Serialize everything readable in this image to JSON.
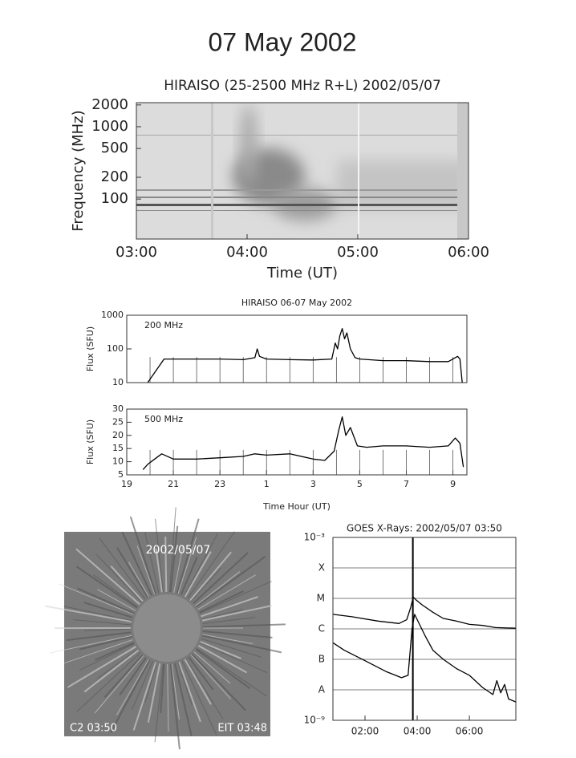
{
  "title": "07 May 2002",
  "chart_data": [
    {
      "type": "spectrogram",
      "title": "HIRAISO (25-2500 MHz R+L) 2002/05/07",
      "xlabel": "Time (UT)",
      "ylabel": "Frequency (MHz)",
      "ylog": true,
      "xlim": [
        3,
        6
      ],
      "xticks": [
        {
          "value": 3,
          "label": "03:00"
        },
        {
          "value": 4,
          "label": "04:00"
        },
        {
          "value": 5,
          "label": "05:00"
        },
        {
          "value": 6,
          "label": "06:00"
        }
      ],
      "ylim": [
        28,
        2150
      ],
      "yticks": [
        100,
        200,
        500,
        1000,
        2000
      ]
    },
    {
      "type": "line",
      "title": "HIRAISO 06-07 May 2002",
      "ylabel": "Flux (SFU)",
      "annotation": "200 MHz",
      "ylog": true,
      "xlim": [
        19,
        33.6
      ],
      "xminorticks": [
        20,
        21,
        22,
        23,
        24,
        25,
        26,
        27,
        28,
        29,
        30,
        31,
        32,
        33
      ],
      "ylim": [
        10,
        1000
      ],
      "yticks": [
        10,
        100,
        1000
      ],
      "series": [
        {
          "color": "#000000",
          "x": [
            19.9,
            20.6,
            21,
            22,
            23,
            24,
            24.5,
            24.6,
            24.7,
            25,
            26,
            27,
            27.8,
            27.95,
            28.05,
            28.15,
            28.25,
            28.35,
            28.45,
            28.6,
            28.8,
            29,
            30,
            31,
            32,
            32.8,
            33.2,
            33.3,
            33.4
          ],
          "values": [
            10,
            50,
            50,
            50,
            50,
            48,
            55,
            100,
            60,
            50,
            48,
            47,
            50,
            150,
            100,
            250,
            400,
            200,
            300,
            100,
            55,
            50,
            45,
            45,
            42,
            42,
            60,
            50,
            10
          ]
        }
      ]
    },
    {
      "type": "line",
      "ylabel": "Flux (SFU)",
      "annotation": "500 MHz",
      "xlabel": "Time Hour (UT)",
      "xlim": [
        19,
        33.6
      ],
      "xticks": [
        19,
        21,
        23,
        {
          "value": 25,
          "label": "1"
        },
        {
          "value": 27,
          "label": "3"
        },
        {
          "value": 29,
          "label": "5"
        },
        {
          "value": 31,
          "label": "7"
        },
        {
          "value": 33,
          "label": "9"
        }
      ],
      "xminorticks": [
        20,
        21,
        22,
        23,
        24,
        25,
        26,
        27,
        28,
        29,
        30,
        31,
        32,
        33
      ],
      "ylim": [
        5,
        30
      ],
      "yticks": [
        5,
        10,
        15,
        20,
        25,
        30
      ],
      "series": [
        {
          "color": "#000000",
          "x": [
            19.7,
            19.9,
            20.2,
            20.5,
            21,
            22,
            23,
            24,
            24.5,
            25,
            26,
            27,
            27.5,
            27.9,
            28.1,
            28.25,
            28.4,
            28.6,
            28.9,
            29.3,
            30,
            31,
            32,
            32.8,
            33.1,
            33.3,
            33.45
          ],
          "values": [
            7,
            9,
            11,
            13,
            11,
            11,
            11.5,
            12,
            13,
            12.5,
            13,
            11,
            10.5,
            14,
            22,
            27,
            20,
            23,
            16,
            15.5,
            16,
            16,
            15.5,
            16,
            19,
            17,
            8
          ]
        }
      ]
    },
    {
      "type": "line",
      "title": "GOES X-Rays: 2002/05/07 03:50",
      "ylog": true,
      "grid": true,
      "xlim": [
        0.77,
        7.78
      ],
      "xticks": [
        {
          "value": 2,
          "label": "02:00"
        },
        {
          "value": 4,
          "label": "04:00"
        },
        {
          "value": 6,
          "label": "06:00"
        }
      ],
      "ylim": [
        1e-09,
        0.001
      ],
      "yticks": [
        {
          "value": 0.001,
          "label": "10⁻³"
        },
        {
          "value": 0.0001,
          "label": "X"
        },
        {
          "value": 1e-05,
          "label": "M"
        },
        {
          "value": 1e-06,
          "label": "C"
        },
        {
          "value": 1e-07,
          "label": "B"
        },
        {
          "value": 1e-08,
          "label": "A"
        },
        {
          "value": 1e-09,
          "label": "10⁻⁹"
        }
      ],
      "vline": 3.8333,
      "series": [
        {
          "color": "#000000",
          "x": [
            0.77,
            1.5,
            2.5,
            3.3,
            3.6,
            3.75,
            3.85,
            3.95,
            4.2,
            4.6,
            5,
            5.5,
            6,
            6.5,
            7,
            7.78
          ],
          "values": [
            3e-06,
            2.5e-06,
            1.8e-06,
            1.5e-06,
            2e-06,
            5e-06,
            1.1e-05,
            9e-06,
            6e-06,
            3.5e-06,
            2.2e-06,
            1.8e-06,
            1.4e-06,
            1.3e-06,
            1.1e-06,
            1.05e-06
          ]
        },
        {
          "color": "#000000",
          "x": [
            0.77,
            1.2,
            2,
            2.8,
            3.4,
            3.65,
            3.8,
            3.9,
            4.0,
            4.3,
            4.6,
            5,
            5.5,
            6,
            6.5,
            6.9,
            7.05,
            7.2,
            7.35,
            7.5,
            7.78
          ],
          "values": [
            3.5e-07,
            2e-07,
            9e-08,
            4e-08,
            2.5e-08,
            3e-08,
            1e-06,
            3e-06,
            2e-06,
            6e-07,
            2e-07,
            1e-07,
            5e-08,
            3e-08,
            1.2e-08,
            7e-09,
            2e-08,
            8e-09,
            1.5e-08,
            5e-09,
            4e-09
          ]
        }
      ]
    }
  ],
  "image": {
    "date": "2002/05/07",
    "left_caption": "C2 03:50",
    "right_caption": "EIT 03:48"
  }
}
